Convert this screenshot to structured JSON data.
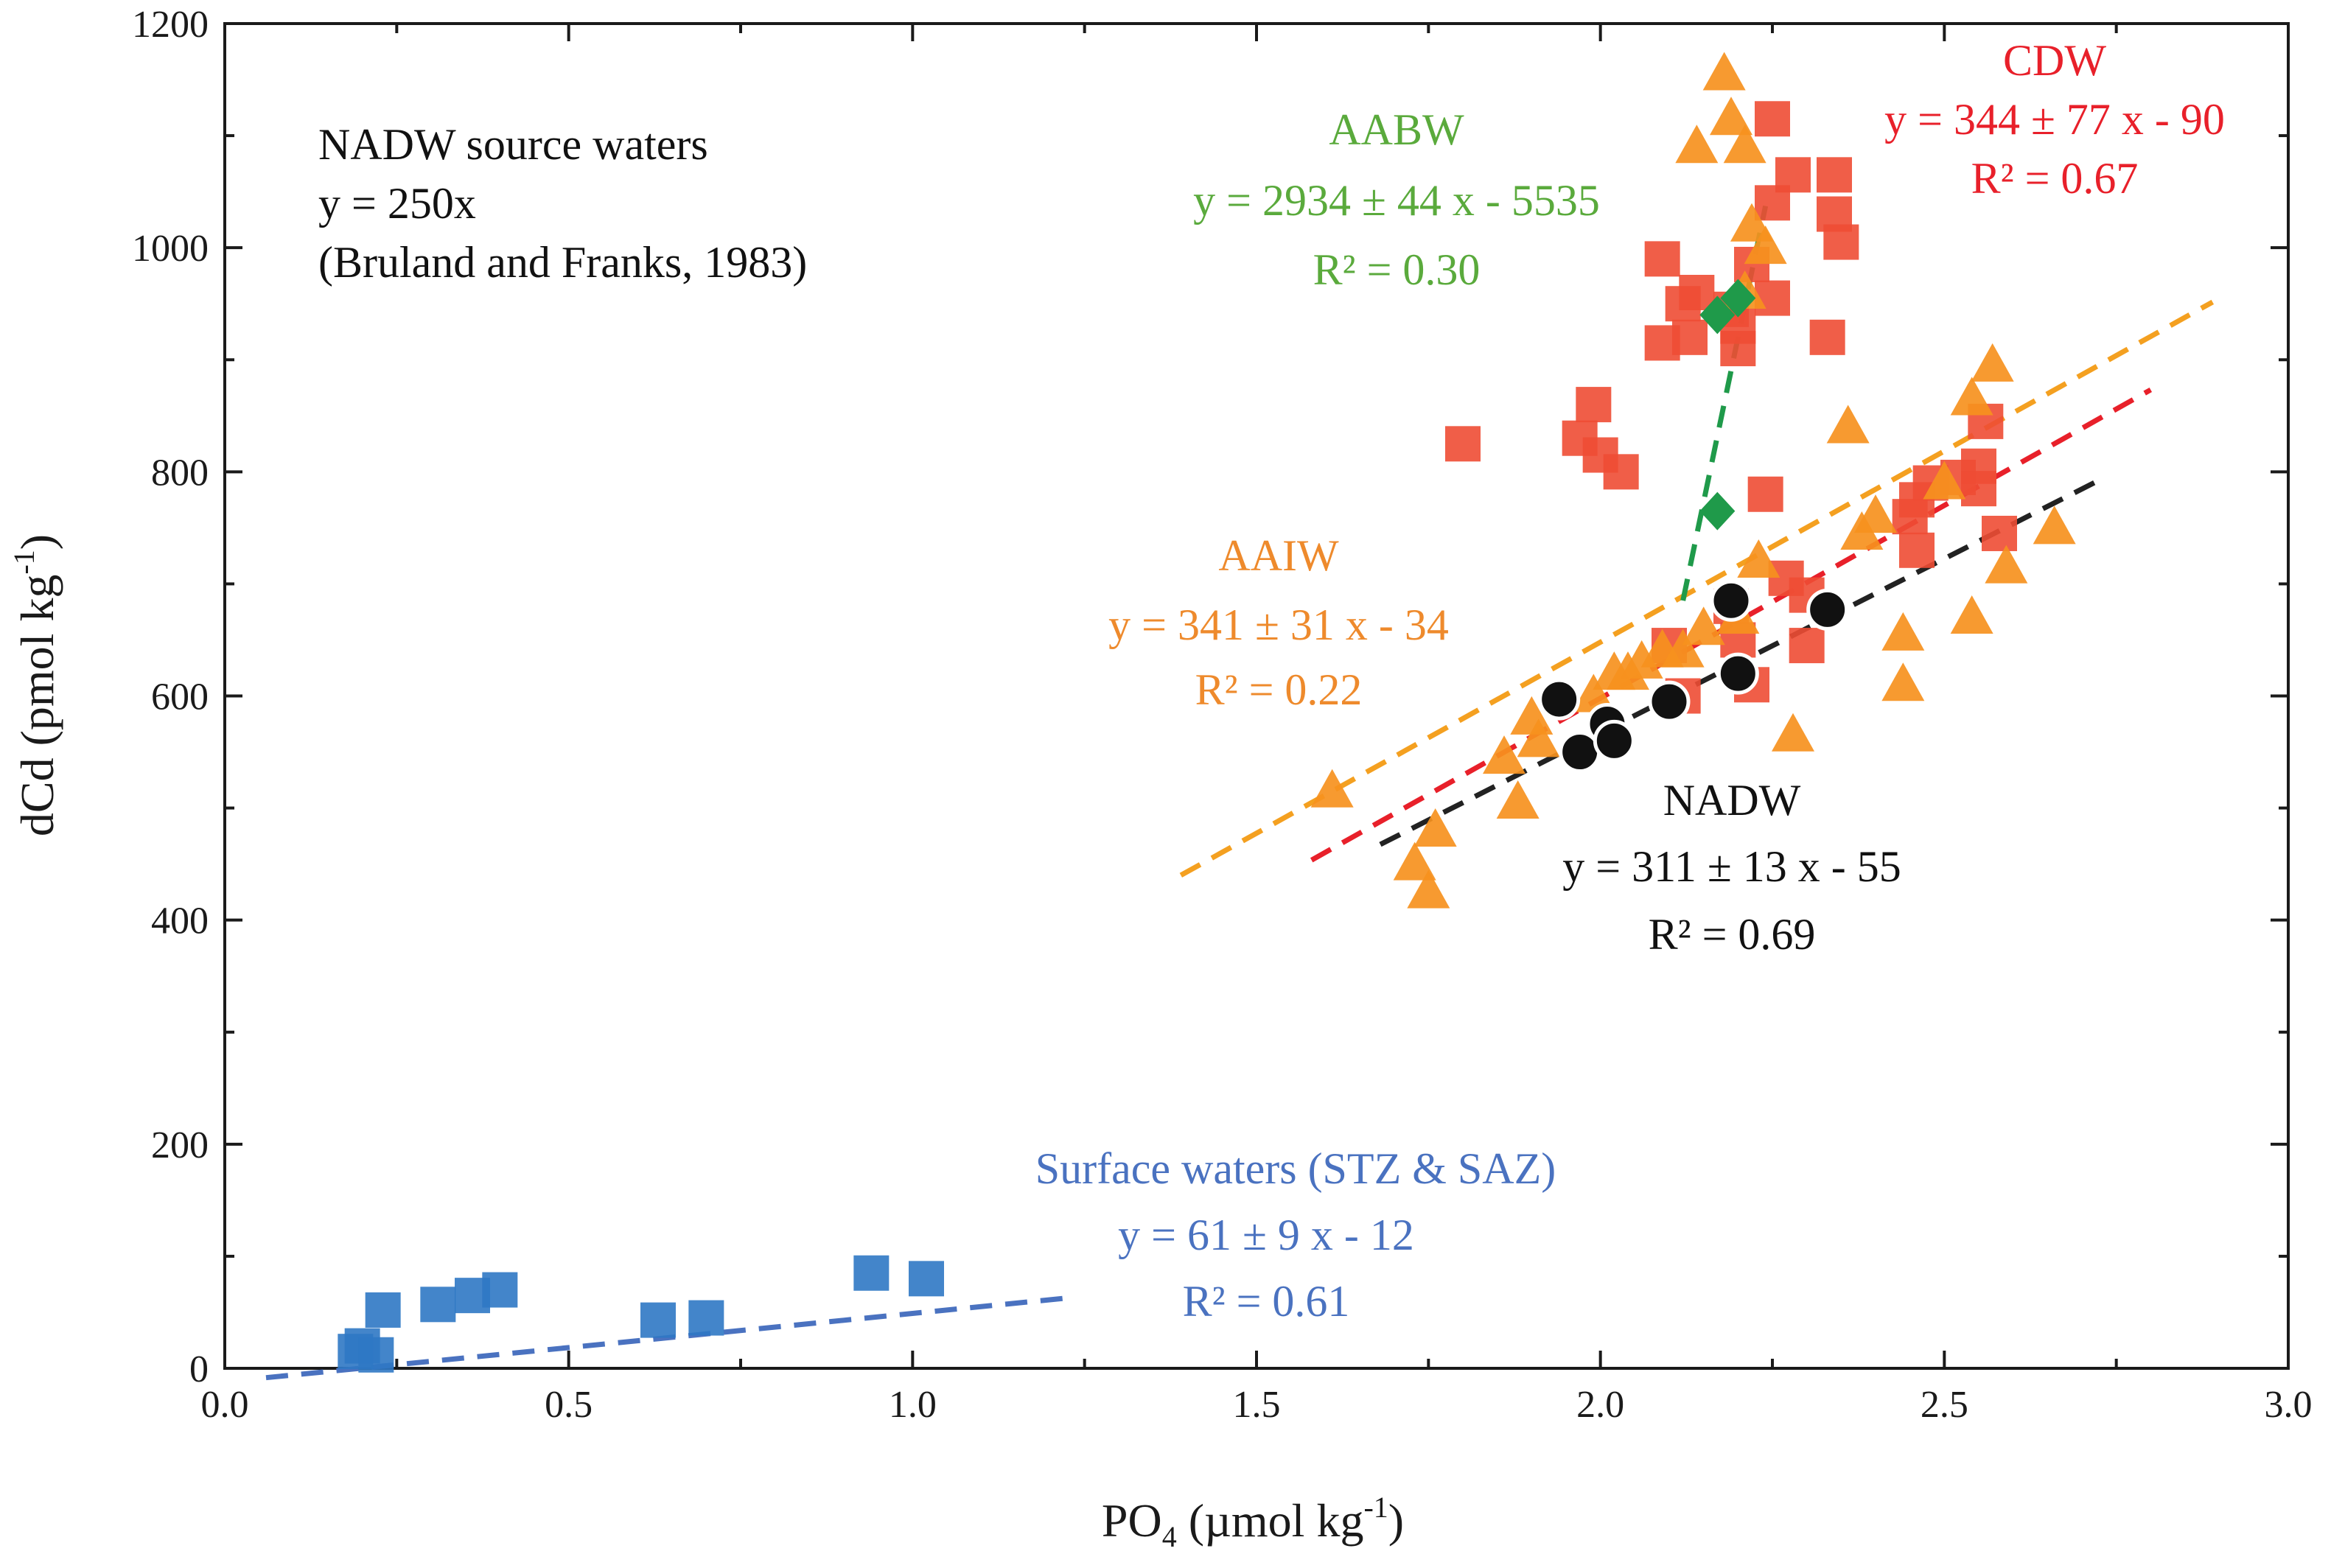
{
  "chart_data": {
    "type": "scatter",
    "xlabel": "PO4 (µmol kg-1)",
    "xlabel_parts": {
      "main": "PO",
      "sub": "4",
      "rest": " (µmol kg",
      "sup": "-1",
      "end": ")"
    },
    "ylabel": "dCd (pmol kg-1)",
    "ylabel_parts": {
      "main": "dCd (pmol kg",
      "sup": "-1",
      "end": ")"
    },
    "xlim": [
      0.0,
      3.0
    ],
    "ylim": [
      0,
      1200
    ],
    "xticks": [
      "0.0",
      "0.5",
      "1.0",
      "1.5",
      "2.0",
      "2.5",
      "3.0"
    ],
    "yticks": [
      "0",
      "200",
      "400",
      "600",
      "800",
      "1000",
      "1200"
    ],
    "grid": false,
    "series": [
      {
        "name": "Surface waters (STZ & SAZ)",
        "marker": "square",
        "color": "#2f78c4",
        "line_color": "#4a72c0",
        "points": [
          [
            0.19,
            15
          ],
          [
            0.2,
            20
          ],
          [
            0.22,
            12
          ],
          [
            0.23,
            52
          ],
          [
            0.31,
            57
          ],
          [
            0.36,
            65
          ],
          [
            0.4,
            70
          ],
          [
            0.63,
            43
          ],
          [
            0.7,
            45
          ],
          [
            0.94,
            85
          ],
          [
            1.02,
            80
          ]
        ],
        "fit": {
          "x_range": [
            0.06,
            1.23
          ],
          "slope": 61,
          "intercept": -12
        },
        "label": {
          "title": "Surface waters (STZ & SAZ)",
          "equation": "y = 61 ± 9 x - 12",
          "r2": "R² = 0.61"
        }
      },
      {
        "name": "CDW",
        "marker": "square",
        "color": "#ee4d34",
        "line_color": "#e8202a",
        "points": [
          [
            2.25,
            1115
          ],
          [
            2.28,
            1065
          ],
          [
            2.34,
            1065
          ],
          [
            2.25,
            1040
          ],
          [
            2.34,
            1030
          ],
          [
            2.35,
            1005
          ],
          [
            2.09,
            990
          ],
          [
            2.22,
            985
          ],
          [
            2.14,
            960
          ],
          [
            2.12,
            950
          ],
          [
            2.25,
            955
          ],
          [
            2.19,
            945
          ],
          [
            2.2,
            930
          ],
          [
            2.13,
            920
          ],
          [
            2.09,
            915
          ],
          [
            2.2,
            910
          ],
          [
            2.33,
            920
          ],
          [
            1.8,
            825
          ],
          [
            1.99,
            860
          ],
          [
            1.97,
            830
          ],
          [
            2.0,
            815
          ],
          [
            2.03,
            800
          ],
          [
            2.24,
            780
          ],
          [
            2.48,
            790
          ],
          [
            2.46,
            775
          ],
          [
            2.45,
            760
          ],
          [
            2.52,
            795
          ],
          [
            2.55,
            805
          ],
          [
            2.56,
            845
          ],
          [
            2.58,
            745
          ],
          [
            2.46,
            730
          ],
          [
            2.55,
            785
          ],
          [
            2.1,
            645
          ],
          [
            2.12,
            600
          ],
          [
            2.19,
            680
          ],
          [
            2.2,
            650
          ],
          [
            2.27,
            705
          ],
          [
            2.3,
            690
          ],
          [
            2.3,
            645
          ],
          [
            2.22,
            610
          ]
        ],
        "fit": {
          "x_range": [
            1.58,
            2.8
          ],
          "slope": 344,
          "intercept": -90
        },
        "label": {
          "title": "CDW",
          "equation": "y = 344 ± 77 x - 90",
          "r2": "R² = 0.67"
        }
      },
      {
        "name": "AAIW",
        "marker": "triangle",
        "color": "#f6911e",
        "line_color": "#f4a020",
        "points": [
          [
            2.18,
            1155
          ],
          [
            2.19,
            1115
          ],
          [
            2.21,
            1090
          ],
          [
            2.14,
            1090
          ],
          [
            2.22,
            1020
          ],
          [
            2.24,
            1000
          ],
          [
            2.21,
            960
          ],
          [
            1.61,
            515
          ],
          [
            1.73,
            450
          ],
          [
            1.75,
            425
          ],
          [
            1.76,
            480
          ],
          [
            1.86,
            545
          ],
          [
            1.88,
            505
          ],
          [
            1.9,
            580
          ],
          [
            1.91,
            560
          ],
          [
            1.99,
            600
          ],
          [
            2.02,
            620
          ],
          [
            2.04,
            620
          ],
          [
            2.06,
            630
          ],
          [
            2.09,
            640
          ],
          [
            2.12,
            640
          ],
          [
            2.15,
            660
          ],
          [
            2.2,
            670
          ],
          [
            2.23,
            720
          ],
          [
            2.28,
            565
          ],
          [
            2.36,
            840
          ],
          [
            2.38,
            745
          ],
          [
            2.4,
            760
          ],
          [
            2.44,
            655
          ],
          [
            2.44,
            610
          ],
          [
            2.5,
            790
          ],
          [
            2.54,
            865
          ],
          [
            2.54,
            670
          ],
          [
            2.57,
            895
          ],
          [
            2.59,
            715
          ],
          [
            2.66,
            750
          ]
        ],
        "fit": {
          "x_range": [
            1.39,
            2.89
          ],
          "slope": 341,
          "intercept": -34
        },
        "label": {
          "title": "AAIW",
          "equation": "y = 341 ± 31 x - 34",
          "r2": "R² = 0.22"
        }
      },
      {
        "name": "AABW",
        "marker": "diamond",
        "color": "#1f9a4a",
        "line_color": "#1f9a4a",
        "points": [
          [
            2.17,
            940
          ],
          [
            2.2,
            955
          ],
          [
            2.17,
            765
          ]
        ],
        "fit": {
          "x_range": [
            2.12,
            2.24
          ],
          "slope": 2934,
          "intercept": -5535
        },
        "label": {
          "title": "AABW",
          "equation": "y = 2934 ± 44 x - 5535",
          "r2": "R² = 0.30"
        }
      },
      {
        "name": "NADW",
        "marker": "circle",
        "color": "#111111",
        "line_color": "#222222",
        "points": [
          [
            1.94,
            597
          ],
          [
            1.97,
            550
          ],
          [
            2.01,
            575
          ],
          [
            2.02,
            560
          ],
          [
            2.1,
            595
          ],
          [
            2.19,
            685
          ],
          [
            2.2,
            620
          ],
          [
            2.33,
            677
          ]
        ],
        "fit": {
          "x_range": [
            1.68,
            2.72
          ],
          "slope": 311,
          "intercept": -55
        },
        "label": {
          "title": "NADW",
          "equation": "y = 311 ± 13 x - 55",
          "r2": "R² = 0.69"
        }
      }
    ],
    "annotations": {
      "source_title": "NADW source waters",
      "source_equation": "y = 250x",
      "source_citation": "(Bruland and Franks, 1983)"
    }
  }
}
